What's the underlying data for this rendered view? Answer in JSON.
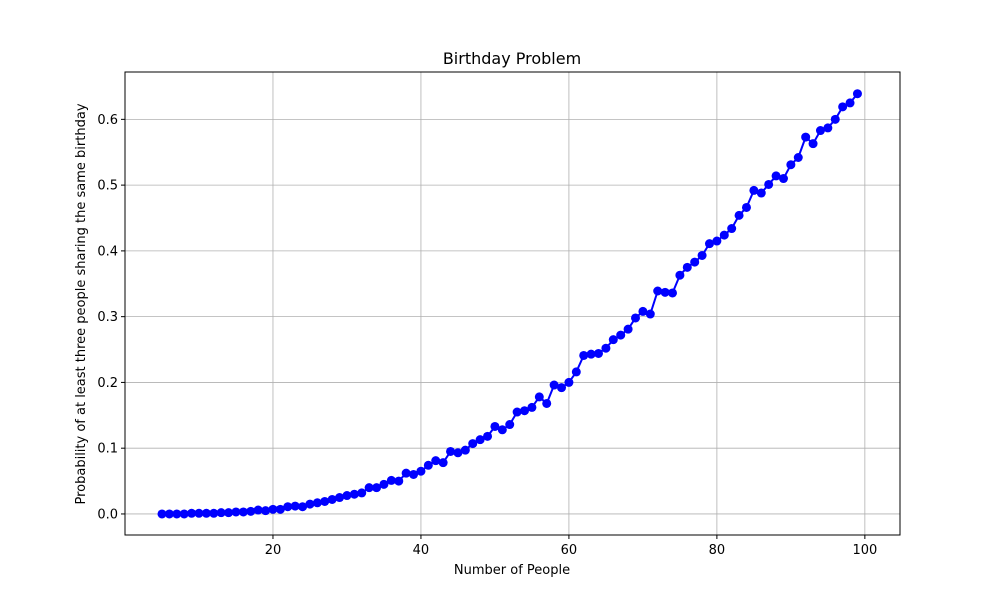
{
  "chart_data": {
    "type": "line",
    "title": "Birthday Problem",
    "xlabel": "Number of People",
    "ylabel": "Probability of at least three people sharing the same birthday",
    "xlim": [
      0,
      104.75
    ],
    "ylim": [
      -0.032,
      0.672
    ],
    "xticks": [
      20,
      40,
      60,
      80,
      100
    ],
    "yticks": [
      0.0,
      0.1,
      0.2,
      0.3,
      0.4,
      0.5,
      0.6
    ],
    "grid": true,
    "legend": "none",
    "marker": "circle",
    "color": "#0000ff",
    "series": [
      {
        "x": [
          5,
          6,
          7,
          8,
          9,
          10,
          11,
          12,
          13,
          14,
          15,
          16,
          17,
          18,
          19,
          20,
          21,
          22,
          23,
          24,
          25,
          26,
          27,
          28,
          29,
          30,
          31,
          32,
          33,
          34,
          35,
          36,
          37,
          38,
          39,
          40,
          41,
          42,
          43,
          44,
          45,
          46,
          47,
          48,
          49,
          50,
          51,
          52,
          53,
          54,
          55,
          56,
          57,
          58,
          59,
          60,
          61,
          62,
          63,
          64,
          65,
          66,
          67,
          68,
          69,
          70,
          71,
          72,
          73,
          74,
          75,
          76,
          77,
          78,
          79,
          80,
          81,
          82,
          83,
          84,
          85,
          86,
          87,
          88,
          89,
          90,
          91,
          92,
          93,
          94,
          95,
          96,
          97,
          98,
          99
        ],
        "y": [
          0.0,
          0.0,
          0.0,
          0.0,
          0.001,
          0.001,
          0.001,
          0.001,
          0.002,
          0.002,
          0.003,
          0.003,
          0.004,
          0.006,
          0.005,
          0.007,
          0.007,
          0.011,
          0.012,
          0.011,
          0.015,
          0.017,
          0.019,
          0.022,
          0.025,
          0.028,
          0.03,
          0.032,
          0.04,
          0.04,
          0.045,
          0.051,
          0.05,
          0.062,
          0.06,
          0.065,
          0.074,
          0.081,
          0.078,
          0.095,
          0.093,
          0.097,
          0.107,
          0.113,
          0.118,
          0.133,
          0.128,
          0.136,
          0.155,
          0.157,
          0.162,
          0.178,
          0.168,
          0.196,
          0.192,
          0.2,
          0.216,
          0.241,
          0.243,
          0.244,
          0.252,
          0.265,
          0.272,
          0.281,
          0.298,
          0.308,
          0.304,
          0.339,
          0.337,
          0.336,
          0.363,
          0.375,
          0.383,
          0.393,
          0.411,
          0.415,
          0.424,
          0.434,
          0.454,
          0.466,
          0.492,
          0.488,
          0.501,
          0.514,
          0.51,
          0.531,
          0.542,
          0.573,
          0.563,
          0.583,
          0.587,
          0.6,
          0.619,
          0.625,
          0.639
        ]
      }
    ]
  }
}
